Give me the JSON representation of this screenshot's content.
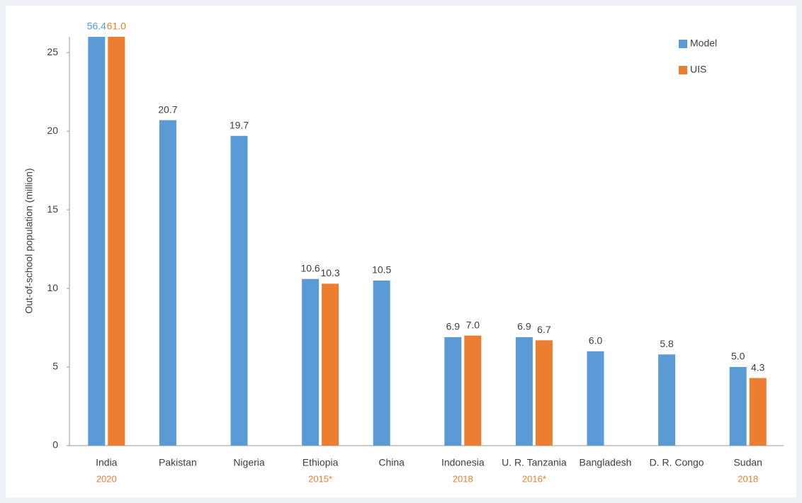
{
  "chart_data": {
    "type": "bar",
    "y_label": "Out-of-school population (million)",
    "categories": [
      "India",
      "Pakistan",
      "Nigeria",
      "Ethiopia",
      "China",
      "Indonesia",
      "U. R. Tanzania",
      "Bangladesh",
      "D. R. Congo",
      "Sudan"
    ],
    "sublabels": [
      "2020",
      null,
      null,
      "2015*",
      null,
      "2018",
      "2016*",
      null,
      null,
      "2018"
    ],
    "sublabel_color": "#ed7d31",
    "series": [
      {
        "name": "Model",
        "color": "#5b9bd5",
        "values": [
          56.4,
          20.7,
          19.7,
          10.6,
          10.5,
          6.9,
          6.9,
          6.0,
          5.8,
          5.0
        ],
        "value_labels": [
          "56.4",
          "20.7",
          "19.7",
          "10.6",
          "10.5",
          "6.9",
          "6.9",
          "6.0",
          "5.8",
          "5.0"
        ]
      },
      {
        "name": "UIS",
        "color": "#ed7d31",
        "values": [
          61.0,
          null,
          null,
          10.3,
          null,
          7.0,
          6.7,
          null,
          null,
          4.3
        ],
        "value_labels": [
          "61.0",
          null,
          null,
          "10.3",
          null,
          "7.0",
          "6.7",
          null,
          null,
          "4.3"
        ]
      }
    ],
    "ylim": [
      0,
      26
    ],
    "yticks": [
      0,
      5,
      10,
      15,
      20,
      25
    ],
    "grid": false,
    "legend": "top-right"
  }
}
